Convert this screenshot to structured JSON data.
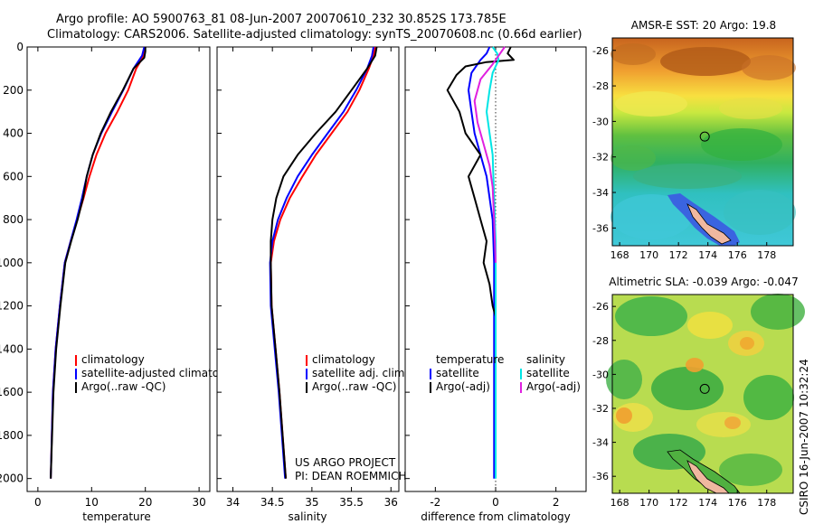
{
  "header": {
    "line1": "Argo profile: AO 5900763_81 08-Jun-2007 20070610_232 30.852S 173.785E",
    "line2": "Climatology: CARS2006. Satellite-adjusted climatology: synTS_20070608.nc (0.66d earlier)"
  },
  "colors": {
    "climatology": "#ff0000",
    "satellite": "#0000ff",
    "argo": "#000000",
    "sal_satellite": "#00e5e5",
    "sal_argo": "#e020e0"
  },
  "chart_data": [
    {
      "type": "line",
      "id": "temperature",
      "xlabel": "temperature",
      "ylabel": "",
      "xlim": [
        -2,
        32
      ],
      "ylim": [
        2060,
        0
      ],
      "xticks": [
        0,
        10,
        20,
        30
      ],
      "yticks": [
        0,
        200,
        400,
        600,
        800,
        1000,
        1200,
        1400,
        1600,
        1800,
        2000
      ],
      "legend": [
        "climatology",
        "satellite-adjusted climatology",
        "Argo(..raw -QC)"
      ],
      "series": [
        {
          "name": "climatology",
          "color": "#ff0000",
          "x": [
            20.0,
            19.7,
            18.3,
            16.8,
            14.8,
            12.6,
            10.9,
            9.6,
            8.5,
            7.3,
            6.1,
            5.0,
            4.1,
            3.3,
            2.8,
            2.4
          ],
          "y": [
            0,
            40,
            100,
            200,
            300,
            400,
            500,
            600,
            700,
            800,
            900,
            1000,
            1200,
            1400,
            1600,
            2000
          ]
        },
        {
          "name": "satellite",
          "color": "#0000ff",
          "x": [
            19.8,
            19.4,
            17.8,
            15.9,
            13.8,
            11.8,
            10.2,
            9.1,
            8.2,
            7.2,
            6.1,
            5.0,
            4.1,
            3.3,
            2.8,
            2.4
          ],
          "y": [
            0,
            40,
            100,
            200,
            300,
            400,
            500,
            600,
            700,
            800,
            900,
            1000,
            1200,
            1400,
            1600,
            2000
          ]
        },
        {
          "name": "Argo",
          "color": "#000000",
          "x": [
            20.0,
            20.0,
            19.8,
            17.8,
            15.8,
            13.6,
            11.7,
            10.2,
            9.1,
            8.4,
            7.4,
            6.2,
            5.1,
            4.2,
            3.4,
            2.9,
            2.4
          ],
          "y": [
            0,
            20,
            50,
            100,
            200,
            300,
            400,
            500,
            600,
            700,
            800,
            900,
            1000,
            1200,
            1400,
            1600,
            2000
          ]
        }
      ]
    },
    {
      "type": "line",
      "id": "salinity",
      "xlabel": "salinity",
      "ylabel": "",
      "xlim": [
        33.8,
        36.1
      ],
      "ylim": [
        2060,
        0
      ],
      "xticks": [
        34,
        34.5,
        35,
        35.5,
        36
      ],
      "yticks": [],
      "legend": [
        "climatology",
        "satellite adj. clim.",
        "Argo(..raw -QC)"
      ],
      "annotations": [
        "US ARGO PROJECT",
        "PI: DEAN ROEMMICH"
      ],
      "series": [
        {
          "name": "climatology",
          "color": "#ff0000",
          "x": [
            35.8,
            35.78,
            35.72,
            35.6,
            35.45,
            35.25,
            35.05,
            34.88,
            34.72,
            34.6,
            34.52,
            34.48,
            34.49,
            34.54,
            34.59,
            34.63,
            34.67
          ],
          "y": [
            0,
            40,
            100,
            200,
            300,
            400,
            500,
            600,
            700,
            800,
            900,
            1000,
            1200,
            1400,
            1600,
            1800,
            2000
          ]
        },
        {
          "name": "satellite",
          "color": "#0000ff",
          "x": [
            35.78,
            35.76,
            35.7,
            35.56,
            35.4,
            35.2,
            35.0,
            34.82,
            34.68,
            34.57,
            34.5,
            34.47,
            34.48,
            34.53,
            34.58,
            34.62,
            34.66
          ],
          "y": [
            0,
            40,
            100,
            200,
            300,
            400,
            500,
            600,
            700,
            800,
            900,
            1000,
            1200,
            1400,
            1600,
            1800,
            2000
          ]
        },
        {
          "name": "Argo",
          "color": "#000000",
          "x": [
            35.82,
            35.8,
            35.7,
            35.5,
            35.3,
            35.05,
            34.82,
            34.64,
            34.55,
            34.5,
            34.48,
            34.48,
            34.49,
            34.54,
            34.59,
            34.63,
            34.67
          ],
          "y": [
            0,
            40,
            100,
            200,
            300,
            400,
            500,
            600,
            700,
            800,
            900,
            1000,
            1200,
            1400,
            1600,
            1800,
            2000
          ]
        }
      ]
    },
    {
      "type": "line",
      "id": "difference",
      "xlabel": "difference from climatology",
      "ylabel": "",
      "xlim": [
        -3,
        3
      ],
      "ylim": [
        2060,
        0
      ],
      "xticks": [
        -2,
        0,
        2
      ],
      "yticks": [],
      "legend_temperature": [
        "temperature",
        "satellite",
        "Argo(-adj)"
      ],
      "legend_salinity": [
        "salinity",
        "satellite",
        "Argo(-adj)"
      ],
      "series": [
        {
          "name": "temperature satellite",
          "color": "#0000ff",
          "x": [
            -0.2,
            -0.3,
            -0.5,
            -0.8,
            -0.9,
            -0.8,
            -0.7,
            -0.5,
            -0.3,
            -0.1,
            -0.05,
            -0.05,
            -0.05,
            -0.05,
            -0.05
          ],
          "y": [
            0,
            30,
            60,
            120,
            200,
            300,
            400,
            500,
            600,
            800,
            1000,
            1200,
            1400,
            1600,
            2000
          ]
        },
        {
          "name": "temperature Argo",
          "color": "#000000",
          "x": [
            0.5,
            0.4,
            0.6,
            -0.3,
            -1.0,
            -1.3,
            -1.6,
            -1.2,
            -1.0,
            -0.5,
            -0.9,
            -0.7,
            -0.5,
            -0.3,
            -0.4,
            -0.2,
            -0.1,
            0.0,
            0.0
          ],
          "y": [
            0,
            30,
            60,
            70,
            90,
            130,
            200,
            300,
            400,
            500,
            600,
            700,
            800,
            900,
            1000,
            1100,
            1200,
            1250,
            1300
          ]
        },
        {
          "name": "salinity satellite",
          "color": "#00e5e5",
          "x": [
            -0.1,
            0.05,
            0.1,
            -0.1,
            -0.2,
            -0.3,
            -0.2,
            -0.1,
            -0.05,
            0.0,
            0.0,
            0.0,
            0.0,
            0.0
          ],
          "y": [
            0,
            30,
            60,
            120,
            200,
            300,
            400,
            500,
            700,
            900,
            1200,
            1400,
            1600,
            2000
          ]
        },
        {
          "name": "salinity Argo",
          "color": "#e020e0",
          "x": [
            0.3,
            0.1,
            -0.1,
            -0.5,
            -0.7,
            -0.6,
            -0.4,
            -0.2,
            -0.1,
            -0.05,
            0.0
          ],
          "y": [
            0,
            40,
            80,
            150,
            250,
            350,
            450,
            550,
            650,
            800,
            1000
          ]
        }
      ]
    },
    {
      "type": "heatmap",
      "id": "sst-map",
      "title": "AMSR-E SST: 20 Argo: 19.8",
      "xlim": [
        167.5,
        179.8
      ],
      "ylim": [
        -37,
        -25.3
      ],
      "xticks": [
        168,
        170,
        172,
        174,
        176,
        178
      ],
      "yticks": [
        -26,
        -28,
        -30,
        -32,
        -34,
        -36
      ],
      "marker": {
        "lon": 173.785,
        "lat": -30.852
      }
    },
    {
      "type": "heatmap",
      "id": "sla-map",
      "title": "Altimetric SLA: -0.039 Argo: -0.047",
      "xlim": [
        167.5,
        179.8
      ],
      "ylim": [
        -37,
        -25.3
      ],
      "xticks": [
        168,
        170,
        172,
        174,
        176,
        178
      ],
      "yticks": [
        -26,
        -28,
        -30,
        -32,
        -34,
        -36
      ],
      "marker": {
        "lon": 173.785,
        "lat": -30.852
      }
    }
  ],
  "footer": {
    "stamp": "CSIRO 16-Jun-2007 10:32:24"
  }
}
